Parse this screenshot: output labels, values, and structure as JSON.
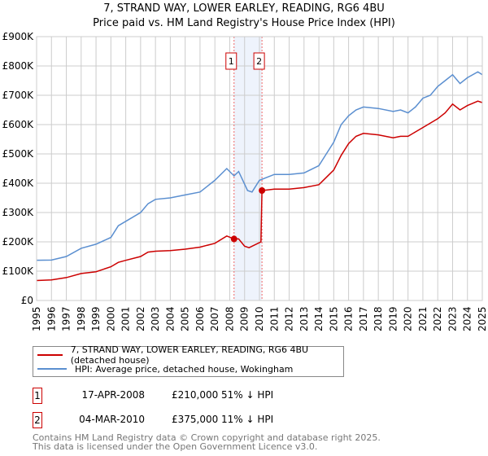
{
  "title_line1": "7, STRAND WAY, LOWER EARLEY, READING, RG6 4BU",
  "title_line2": "Price paid vs. HM Land Registry's House Price Index (HPI)",
  "chart_data": {
    "type": "line",
    "xlim": [
      1995,
      2025
    ],
    "ylim": [
      0,
      900000
    ],
    "yticks": [
      0,
      100000,
      200000,
      300000,
      400000,
      500000,
      600000,
      700000,
      800000,
      900000
    ],
    "ytick_labels": [
      "£0",
      "£100K",
      "£200K",
      "£300K",
      "£400K",
      "£500K",
      "£600K",
      "£700K",
      "£800K",
      "£900K"
    ],
    "xticks": [
      "1995",
      "1996",
      "1997",
      "1998",
      "1999",
      "2000",
      "2001",
      "2002",
      "2003",
      "2004",
      "2005",
      "2006",
      "2007",
      "2008",
      "2009",
      "2010",
      "2011",
      "2012",
      "2013",
      "2014",
      "2015",
      "2016",
      "2017",
      "2018",
      "2019",
      "2020",
      "2021",
      "2022",
      "2023",
      "2024",
      "2025"
    ],
    "grid": true,
    "series": [
      {
        "name": "7, STRAND WAY, LOWER EARLEY, READING, RG6 4BU (detached house)",
        "color": "#cc0000",
        "x": [
          1995,
          1996,
          1997,
          1998,
          1999,
          2000,
          2000.5,
          2001,
          2002,
          2002.5,
          2003,
          2004,
          2005,
          2006,
          2007,
          2007.8,
          2008.29,
          2008.6,
          2009,
          2009.3,
          2010.1,
          2010.17,
          2011,
          2012,
          2013,
          2014,
          2014.5,
          2015,
          2015.5,
          2016,
          2016.5,
          2017,
          2018,
          2019,
          2019.5,
          2020,
          2020.5,
          2021,
          2022,
          2022.5,
          2023,
          2023.5,
          2024,
          2024.7,
          2025
        ],
        "y": [
          68000,
          70000,
          78000,
          92000,
          98000,
          115000,
          130000,
          137000,
          150000,
          165000,
          168000,
          170000,
          175000,
          182000,
          195000,
          220000,
          210000,
          210000,
          185000,
          180000,
          200000,
          375000,
          380000,
          380000,
          385000,
          395000,
          420000,
          445000,
          495000,
          535000,
          560000,
          570000,
          565000,
          555000,
          560000,
          560000,
          575000,
          590000,
          620000,
          640000,
          670000,
          650000,
          665000,
          680000,
          675000
        ]
      },
      {
        "name": "HPI: Average price, detached house, Wokingham",
        "color": "#5b8fd0",
        "x": [
          1995,
          1996,
          1997,
          1998,
          1999,
          2000,
          2000.5,
          2001,
          2002,
          2002.5,
          2003,
          2004,
          2005,
          2006,
          2007,
          2007.8,
          2008.29,
          2008.6,
          2009.2,
          2009.5,
          2010,
          2010.5,
          2011,
          2012,
          2013,
          2014,
          2014.5,
          2015,
          2015.5,
          2016,
          2016.5,
          2017,
          2018,
          2019,
          2019.5,
          2020,
          2020.5,
          2021,
          2021.5,
          2022,
          2022.5,
          2023,
          2023.5,
          2024,
          2024.7,
          2025
        ],
        "y": [
          137000,
          138000,
          150000,
          178000,
          192000,
          215000,
          255000,
          270000,
          300000,
          330000,
          345000,
          350000,
          360000,
          370000,
          410000,
          450000,
          425000,
          440000,
          375000,
          370000,
          410000,
          420000,
          430000,
          430000,
          435000,
          460000,
          500000,
          540000,
          600000,
          630000,
          650000,
          660000,
          655000,
          645000,
          650000,
          640000,
          660000,
          690000,
          700000,
          730000,
          750000,
          770000,
          740000,
          760000,
          780000,
          770000
        ]
      }
    ],
    "sales": [
      {
        "label": "1",
        "x": 2008.29,
        "price": 210000,
        "date": "17-APR-2008",
        "price_text": "£210,000",
        "hpi_text": "51% ↓ HPI"
      },
      {
        "label": "2",
        "x": 2010.17,
        "price": 375000,
        "date": "04-MAR-2010",
        "price_text": "£375,000",
        "hpi_text": "11% ↓ HPI"
      }
    ]
  },
  "legend": {
    "red": "7, STRAND WAY, LOWER EARLEY, READING, RG6 4BU (detached house)",
    "blue": "HPI: Average price, detached house, Wokingham"
  },
  "footer": {
    "line1": "Contains HM Land Registry data © Crown copyright and database right 2025.",
    "line2": "This data is licensed under the Open Government Licence v3.0."
  }
}
